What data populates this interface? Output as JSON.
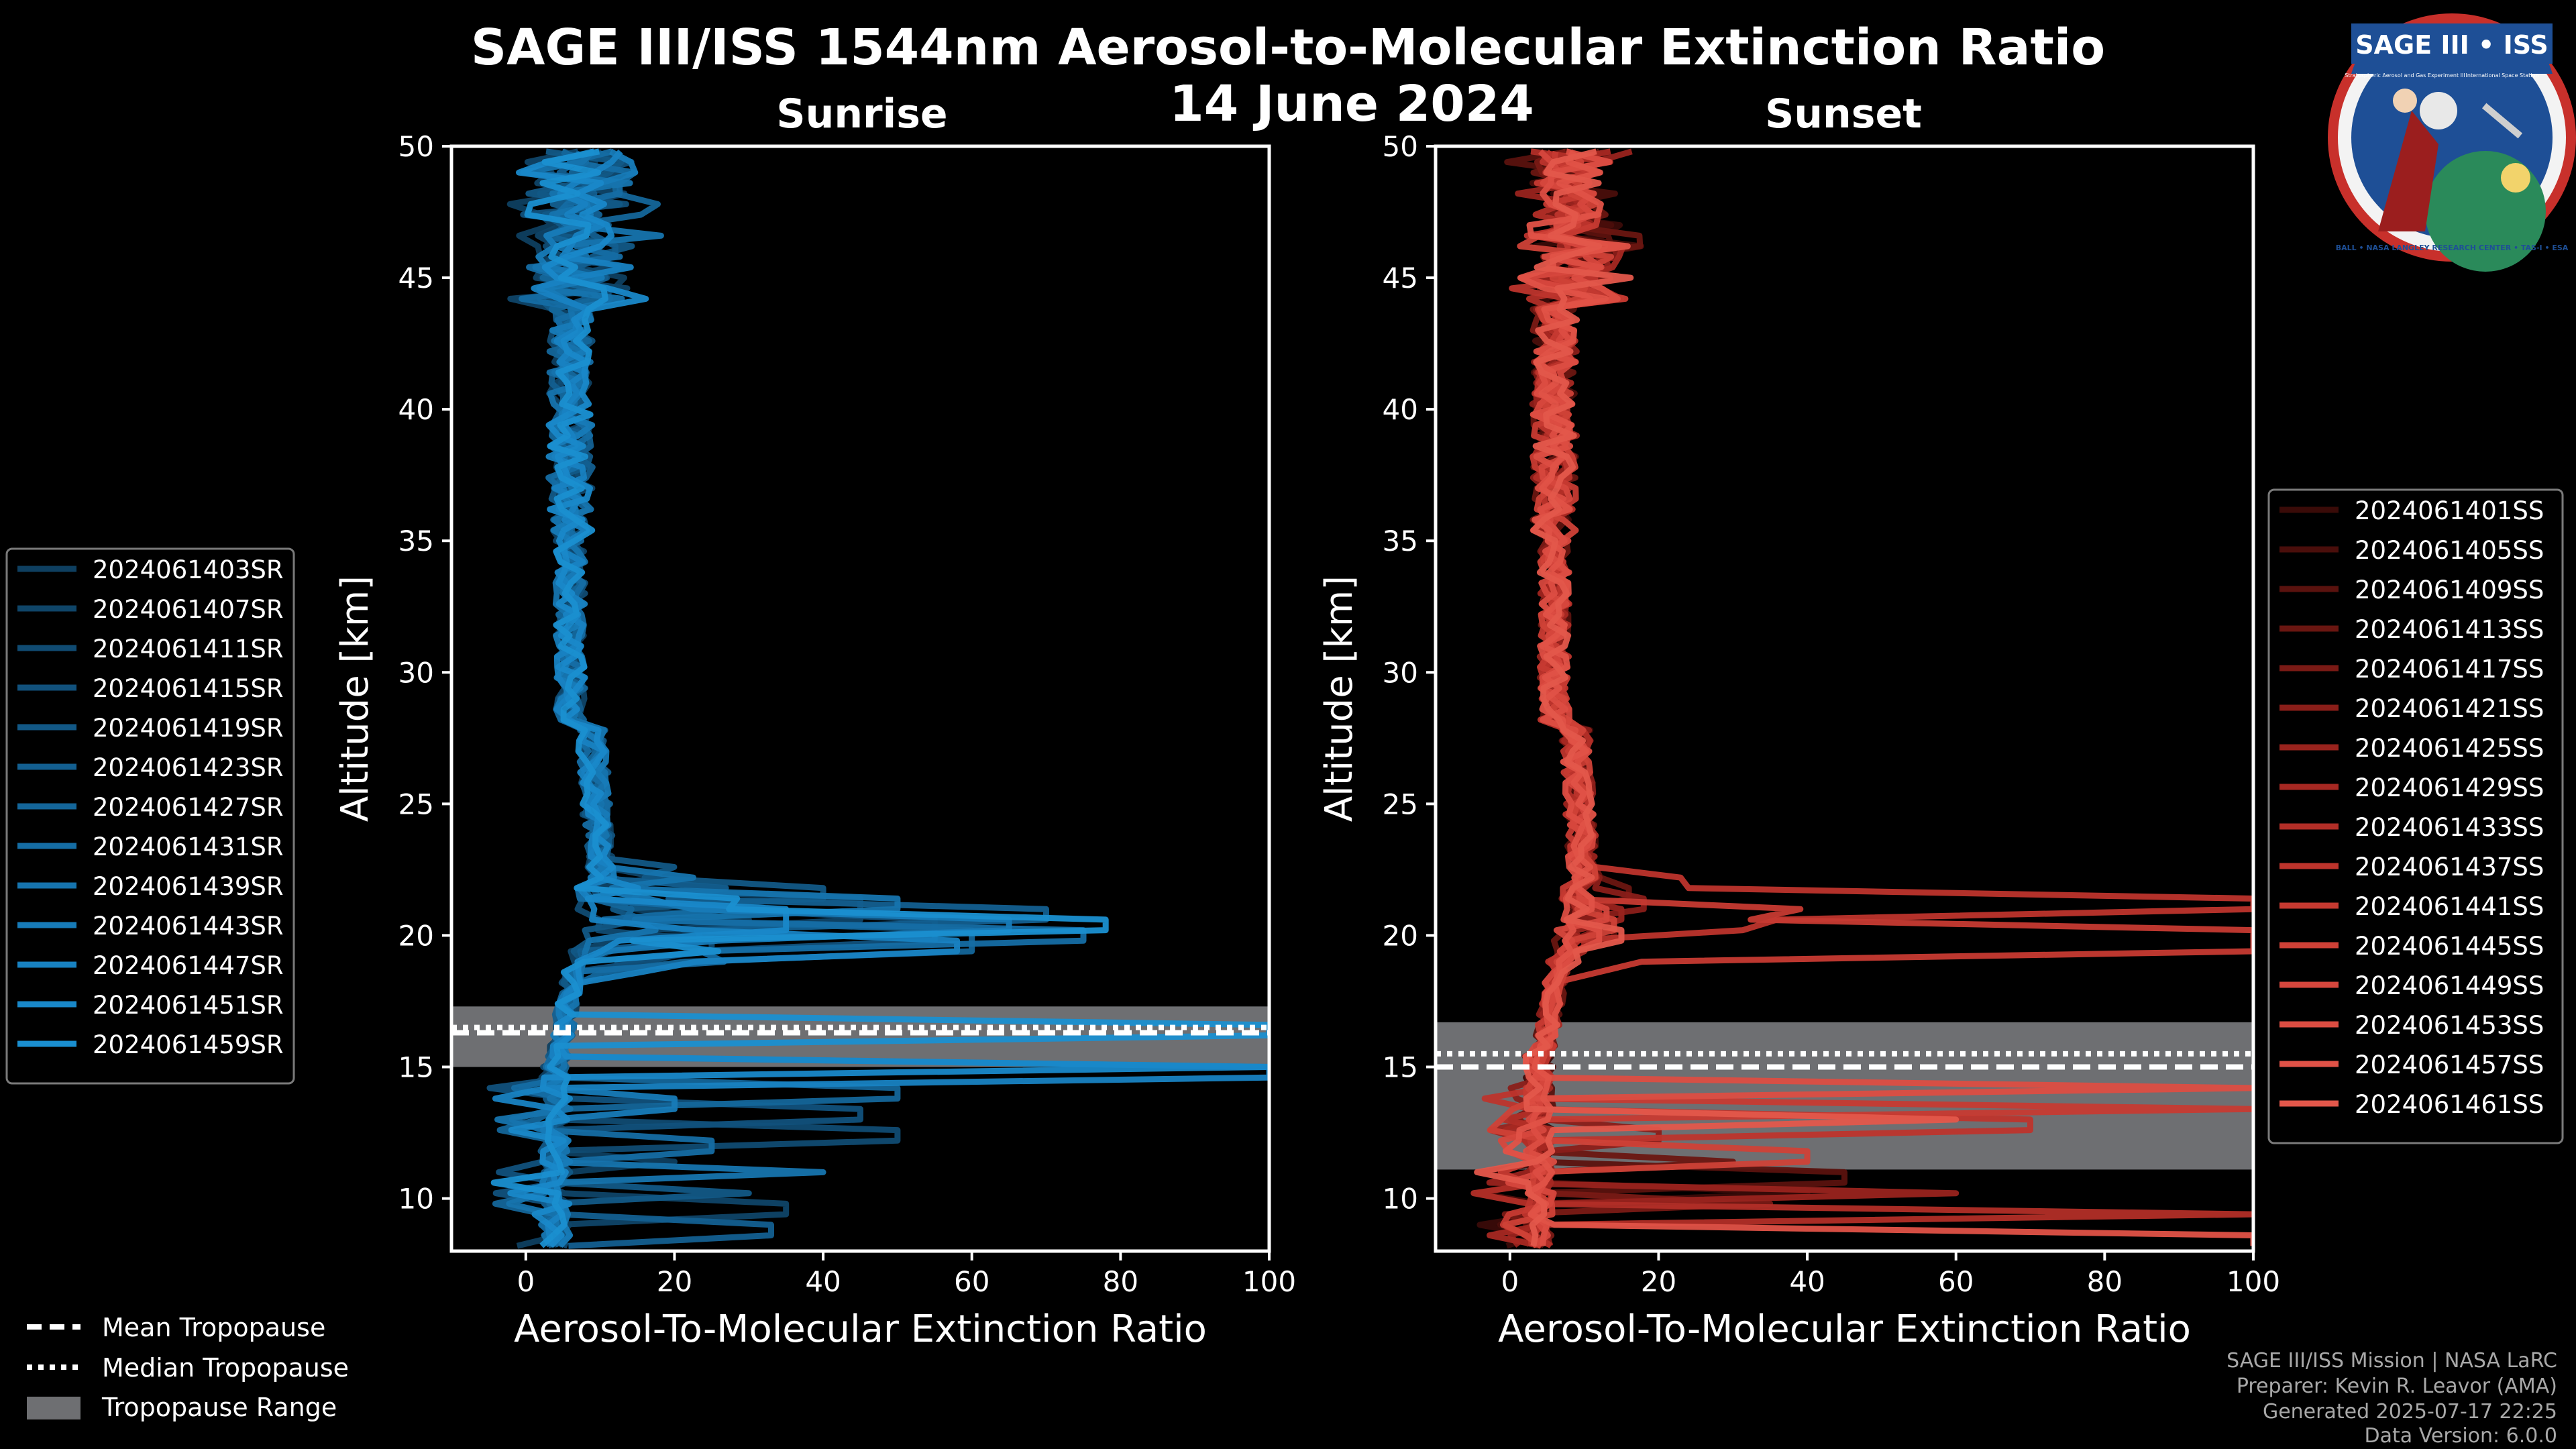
{
  "header": {
    "title": "SAGE III/ISS 1544nm Aerosol-to-Molecular Extinction Ratio",
    "date": "14 June 2024"
  },
  "logo": {
    "text_top": "SAGE III • ISS",
    "text_ring": "BALL • NASA LANGLEY RESEARCH CENTER • TAS-I • ESA",
    "text_left": "Stratospheric Aerosol and Gas Experiment III",
    "text_right": "International Space Station"
  },
  "colors": {
    "background": "#000000",
    "sunrise": "#1a8fd0",
    "sunset": "#e0564a",
    "tropopause_range": "#6e6f72",
    "axis": "#ffffff"
  },
  "chart_data": [
    {
      "id": "sunrise",
      "type": "line",
      "title": "Sunrise",
      "xlabel": "Aerosol-To-Molecular Extinction Ratio",
      "ylabel": "Altitude [km]",
      "xlim": [
        -10,
        100
      ],
      "ylim": [
        8,
        50
      ],
      "xticks": [
        0,
        20,
        40,
        60,
        80,
        100
      ],
      "yticks": [
        10,
        15,
        20,
        25,
        30,
        35,
        40,
        45,
        50
      ],
      "legend_position": "left",
      "series": [
        {
          "name": "2024061403SR",
          "color": "#0e3f60",
          "seed": 3,
          "tail": [
            11.5,
            20
          ],
          "spike": [
            20.5,
            30
          ]
        },
        {
          "name": "2024061407SR",
          "color": "#0f4568",
          "seed": 7,
          "tail": [
            9.6,
            35
          ],
          "spike": [
            21,
            45
          ]
        },
        {
          "name": "2024061411SR",
          "color": "#104b72",
          "seed": 11,
          "tail": [
            12.5,
            50
          ],
          "spike": [
            19.5,
            25
          ]
        },
        {
          "name": "2024061415SR",
          "color": "#11517c",
          "seed": 15,
          "tail": [
            13.2,
            45
          ],
          "spike": [
            20.2,
            55
          ]
        },
        {
          "name": "2024061419SR",
          "color": "#125886",
          "seed": 19,
          "tail": [
            10.5,
            30
          ],
          "spike": [
            21.5,
            40
          ]
        },
        {
          "name": "2024061423SR",
          "color": "#135f90",
          "seed": 23,
          "tail": [
            8.8,
            33
          ],
          "spike": [
            20.8,
            70
          ]
        },
        {
          "name": "2024061427SR",
          "color": "#14669a",
          "seed": 27,
          "tail": [
            14.0,
            50
          ],
          "spike": [
            19.8,
            60
          ]
        },
        {
          "name": "2024061431SR",
          "color": "#156da4",
          "seed": 31,
          "tail": [
            12.0,
            25
          ],
          "spike": [
            20.0,
            75
          ]
        },
        {
          "name": "2024061439SR",
          "color": "#1674ae",
          "seed": 39,
          "tail": [
            11.0,
            40
          ],
          "spike": [
            21.2,
            50
          ]
        },
        {
          "name": "2024061443SR",
          "color": "#177bb8",
          "seed": 43,
          "tail": [
            13.6,
            20
          ],
          "spike": [
            20.4,
            65
          ]
        },
        {
          "name": "2024061447SR",
          "color": "#1882c2",
          "seed": 47,
          "tail": [
            14.8,
            100
          ],
          "spike": [
            19.6,
            58
          ]
        },
        {
          "name": "2024061451SR",
          "color": "#1988c9",
          "seed": 51,
          "tail": [
            15.0,
            100
          ],
          "spike": [
            20.6,
            35
          ]
        },
        {
          "name": "2024061459SR",
          "color": "#1a8fd0",
          "seed": 59,
          "tail": [
            16.5,
            100
          ],
          "spike": [
            20.3,
            78
          ]
        }
      ],
      "tropopause": {
        "mean": 16.3,
        "median": 16.5,
        "range": [
          15.0,
          17.3
        ]
      }
    },
    {
      "id": "sunset",
      "type": "line",
      "title": "Sunset",
      "xlabel": "Aerosol-To-Molecular Extinction Ratio",
      "ylabel": "Altitude [km]",
      "xlim": [
        -10,
        100
      ],
      "ylim": [
        8,
        50
      ],
      "xticks": [
        0,
        20,
        40,
        60,
        80,
        100
      ],
      "yticks": [
        10,
        15,
        20,
        25,
        30,
        35,
        40,
        45,
        50
      ],
      "legend_position": "right",
      "series": [
        {
          "name": "2024061401SS",
          "color": "#3a0b08",
          "seed": 101,
          "tail": [
            10.2,
            40
          ],
          "spike": [
            20.5,
            12
          ]
        },
        {
          "name": "2024061405SS",
          "color": "#4a0e0b",
          "seed": 105,
          "tail": [
            9.0,
            25
          ],
          "spike": [
            21.0,
            10
          ]
        },
        {
          "name": "2024061409SS",
          "color": "#5a120e",
          "seed": 109,
          "tail": [
            10.8,
            45
          ],
          "spike": [
            20.0,
            14
          ]
        },
        {
          "name": "2024061413SS",
          "color": "#6a1611",
          "seed": 113,
          "tail": [
            11.5,
            30
          ],
          "spike": [
            21.5,
            16
          ]
        },
        {
          "name": "2024061417SS",
          "color": "#7a1a15",
          "seed": 117,
          "tail": [
            9.6,
            35
          ],
          "spike": [
            20.2,
            12
          ]
        },
        {
          "name": "2024061421SS",
          "color": "#8a1e19",
          "seed": 121,
          "tail": [
            12.5,
            20
          ],
          "spike": [
            21.2,
            18
          ]
        },
        {
          "name": "2024061425SS",
          "color": "#99231d",
          "seed": 125,
          "tail": [
            10.4,
            60
          ],
          "spike": [
            20.8,
            15
          ]
        },
        {
          "name": "2024061429SS",
          "color": "#a62822",
          "seed": 129,
          "tail": [
            8.6,
            100
          ],
          "spike": [
            19.6,
            10
          ]
        },
        {
          "name": "2024061433SS",
          "color": "#b22e27",
          "seed": 133,
          "tail": [
            9.3,
            100
          ],
          "spike": [
            20.6,
            12
          ]
        },
        {
          "name": "2024061437SS",
          "color": "#bd342c",
          "seed": 137,
          "tail": [
            12.8,
            70
          ],
          "spike": [
            21.1,
            100
          ]
        },
        {
          "name": "2024061441SS",
          "color": "#c63a31",
          "seed": 141,
          "tail": [
            13.5,
            100
          ],
          "spike": [
            19.8,
            100
          ]
        },
        {
          "name": "2024061445SS",
          "color": "#cf4137",
          "seed": 145,
          "tail": [
            11.7,
            40
          ],
          "spike": [
            20.3,
            14
          ]
        },
        {
          "name": "2024061449SS",
          "color": "#d6473d",
          "seed": 149,
          "tail": [
            12.2,
            55
          ],
          "spike": [
            20.9,
            13
          ]
        },
        {
          "name": "2024061453SS",
          "color": "#dc4d42",
          "seed": 153,
          "tail": [
            14.2,
            100
          ],
          "spike": [
            19.9,
            12
          ]
        },
        {
          "name": "2024061457SS",
          "color": "#e05247",
          "seed": 157,
          "tail": [
            8.4,
            100
          ],
          "spike": [
            21.3,
            11
          ]
        },
        {
          "name": "2024061461SS",
          "color": "#e3574b",
          "seed": 161,
          "tail": [
            13.0,
            60
          ],
          "spike": [
            20.1,
            15
          ]
        }
      ],
      "tropopause": {
        "mean": 15.0,
        "median": 15.5,
        "range": [
          11.1,
          16.7
        ]
      }
    }
  ],
  "legend_tropopause": {
    "mean": "Mean Tropopause",
    "median": "Median Tropopause",
    "range": "Tropopause Range"
  },
  "footer": {
    "line1": "SAGE III/ISS Mission | NASA LaRC",
    "line2": "Preparer: Kevin R. Leavor (AMA)",
    "line3": "Generated 2025-07-17 22:25",
    "line4": "Data Version: 6.0.0"
  }
}
